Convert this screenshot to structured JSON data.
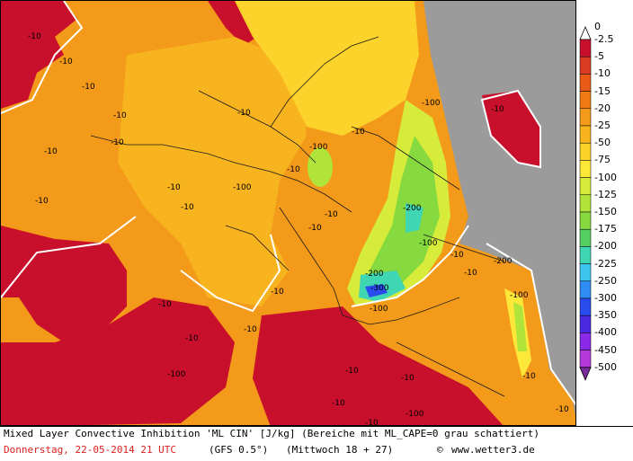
{
  "map": {
    "labels": [
      "-10",
      "-10",
      "-10",
      "-10",
      "-10",
      "-10",
      "-10",
      "-10",
      "-10",
      "-10",
      "-10",
      "-10",
      "-10",
      "-10",
      "-10",
      "-10",
      "-10",
      "-10",
      "-10",
      "-10",
      "-10",
      "-10",
      "-10",
      "-10",
      "-10",
      "-10",
      "-10",
      "-100",
      "-100",
      "-100",
      "-100",
      "-100",
      "-100",
      "-200",
      "-200",
      "-200",
      "-300",
      "-100",
      "-100"
    ]
  },
  "legend": {
    "levels": [
      "0",
      "-2.5",
      "-5",
      "-10",
      "-15",
      "-20",
      "-25",
      "-50",
      "-75",
      "-100",
      "-125",
      "-150",
      "-175",
      "-200",
      "-225",
      "-250",
      "-300",
      "-350",
      "-400",
      "-450",
      "-500"
    ],
    "colors": [
      "#a3002c",
      "#c8102c",
      "#d93a22",
      "#e85a16",
      "#ef7a12",
      "#f39a1a",
      "#f8b41e",
      "#fbd32a",
      "#fde83a",
      "#d7ec3a",
      "#b0e43a",
      "#86d93e",
      "#55cf62",
      "#3fd6b4",
      "#3cc6f0",
      "#2f8cf4",
      "#2a4cef",
      "#4a2ae0",
      "#8a2ae8",
      "#b43adc",
      "#7a2a9a"
    ]
  },
  "footer": {
    "title": "Mixed Layer Convective Inhibition 'ML CIN' [J/kg] (Bereiche mit ML_CAPE=0 grau schattiert)",
    "date": "Donnerstag, 22-05-2014  21 UTC",
    "model": "(GFS 0.5°)",
    "run": "(Mittwoch 18 + 27)",
    "site": "www.wetter3.de"
  }
}
